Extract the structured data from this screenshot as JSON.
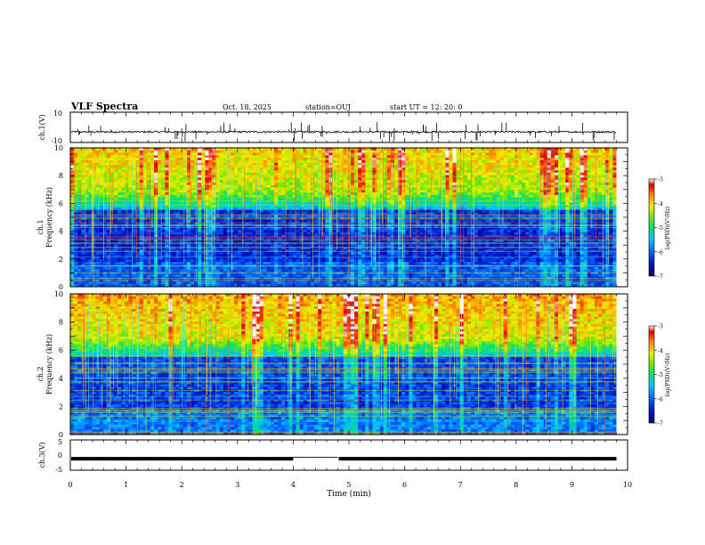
{
  "header": {
    "title": "VLF Spectra",
    "date": "Oct. 18, 2025",
    "station": "station=OUJ",
    "start": "start  UT =   12: 20: 0"
  },
  "chart_data": [
    {
      "type": "line",
      "name": "ch1-waveform",
      "ylabel": "ch.1(V)",
      "ylim": [
        -10,
        10
      ],
      "y_ticks": [
        "10",
        "-10"
      ],
      "x": [
        0,
        10
      ],
      "data_end_min": 9.8,
      "baseline": -3,
      "noise_amplitude": 0.6
    },
    {
      "type": "heatmap",
      "name": "ch1-spectrogram",
      "ylabel_channel": "ch.1",
      "ylabel": "Frequency (kHz)",
      "ylim": [
        0,
        10
      ],
      "y_ticks": [
        "0",
        "2",
        "4",
        "6",
        "8",
        "10"
      ],
      "data_end_min": 9.8,
      "colorbar": {
        "label": "log(PSD)(V²/Hz)",
        "range": [
          -7,
          -3
        ],
        "ticks": [
          "-3",
          "-4",
          "-5",
          "-6",
          "-7"
        ]
      }
    },
    {
      "type": "heatmap",
      "name": "ch2-spectrogram",
      "ylabel_channel": "ch.2",
      "ylabel": "Frequency (kHz)",
      "ylim": [
        0,
        10
      ],
      "y_ticks": [
        "0",
        "2",
        "4",
        "6",
        "8",
        "10"
      ],
      "data_end_min": 9.8,
      "colorbar": {
        "label": "log(PSD)(V²/Hz)",
        "range": [
          -7,
          -3
        ],
        "ticks": [
          "-3",
          "-4",
          "-5",
          "-6",
          "-7"
        ]
      }
    },
    {
      "type": "line",
      "name": "ch3-waveform",
      "ylabel": "ch.3(V)",
      "ylim": [
        -5,
        5
      ],
      "y_ticks": [
        "5",
        "0",
        "-5"
      ],
      "x": [
        0,
        10
      ],
      "data_end_min": 9.8,
      "level": -1.2,
      "gap_min": [
        4.0,
        4.8
      ]
    }
  ],
  "xaxis": {
    "label": "Time (min)",
    "range": [
      0,
      10
    ],
    "ticks": [
      "0",
      "1",
      "2",
      "3",
      "4",
      "5",
      "6",
      "7",
      "8",
      "9",
      "10"
    ]
  }
}
